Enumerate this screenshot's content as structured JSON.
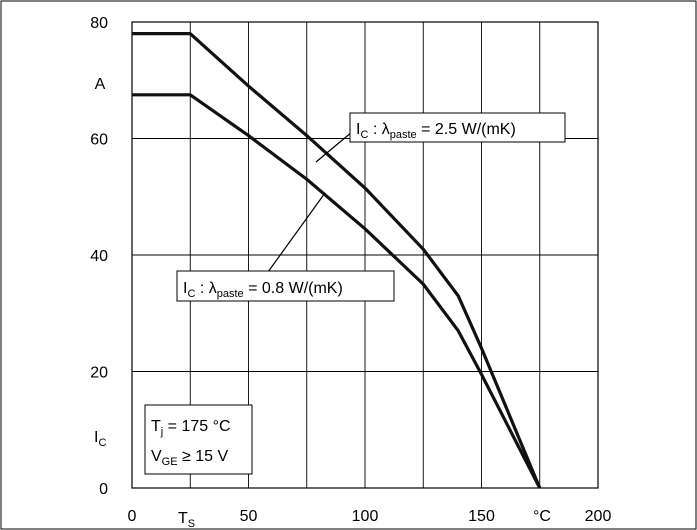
{
  "chart_data": {
    "type": "line",
    "x_ticks": [
      "0",
      "50",
      "100",
      "150",
      "200"
    ],
    "x_tick_values": [
      0,
      50,
      100,
      150,
      200
    ],
    "y_ticks": [
      "0",
      "20",
      "40",
      "60",
      "80"
    ],
    "y_tick_values": [
      0,
      20,
      40,
      60,
      80
    ],
    "xlim": [
      0,
      200
    ],
    "ylim": [
      0,
      80
    ],
    "grid": true,
    "xlabel_symbol": "T",
    "xlabel_sub": "S",
    "xunit": "°C",
    "ylabel_symbol": "I",
    "ylabel_sub": "C",
    "yunit": "A",
    "series": [
      {
        "name_main": "I",
        "name_sub": "C",
        "name_mid": " : λ",
        "name_sub2": "paste",
        "name_end": " = 2.5 W/(mK)",
        "x": [
          0,
          25,
          50,
          75,
          100,
          125,
          140,
          150,
          175
        ],
        "y": [
          78,
          78,
          69,
          60.5,
          51.5,
          41,
          33,
          24,
          0
        ]
      },
      {
        "name_main": "I",
        "name_sub": "C",
        "name_mid": " : λ",
        "name_sub2": "paste",
        "name_end": " = 0.8 W/(mK)",
        "x": [
          0,
          25,
          50,
          75,
          100,
          125,
          140,
          150,
          175
        ],
        "y": [
          67.5,
          67.5,
          60.5,
          53,
          44.5,
          35,
          27,
          19.5,
          0
        ]
      }
    ],
    "conditions": {
      "line1_main": "T",
      "line1_sub": "j",
      "line1_end": " = 175 °C",
      "line2_main": "V",
      "line2_sub": "GE",
      "line2_end": " ≥ 15 V"
    }
  }
}
